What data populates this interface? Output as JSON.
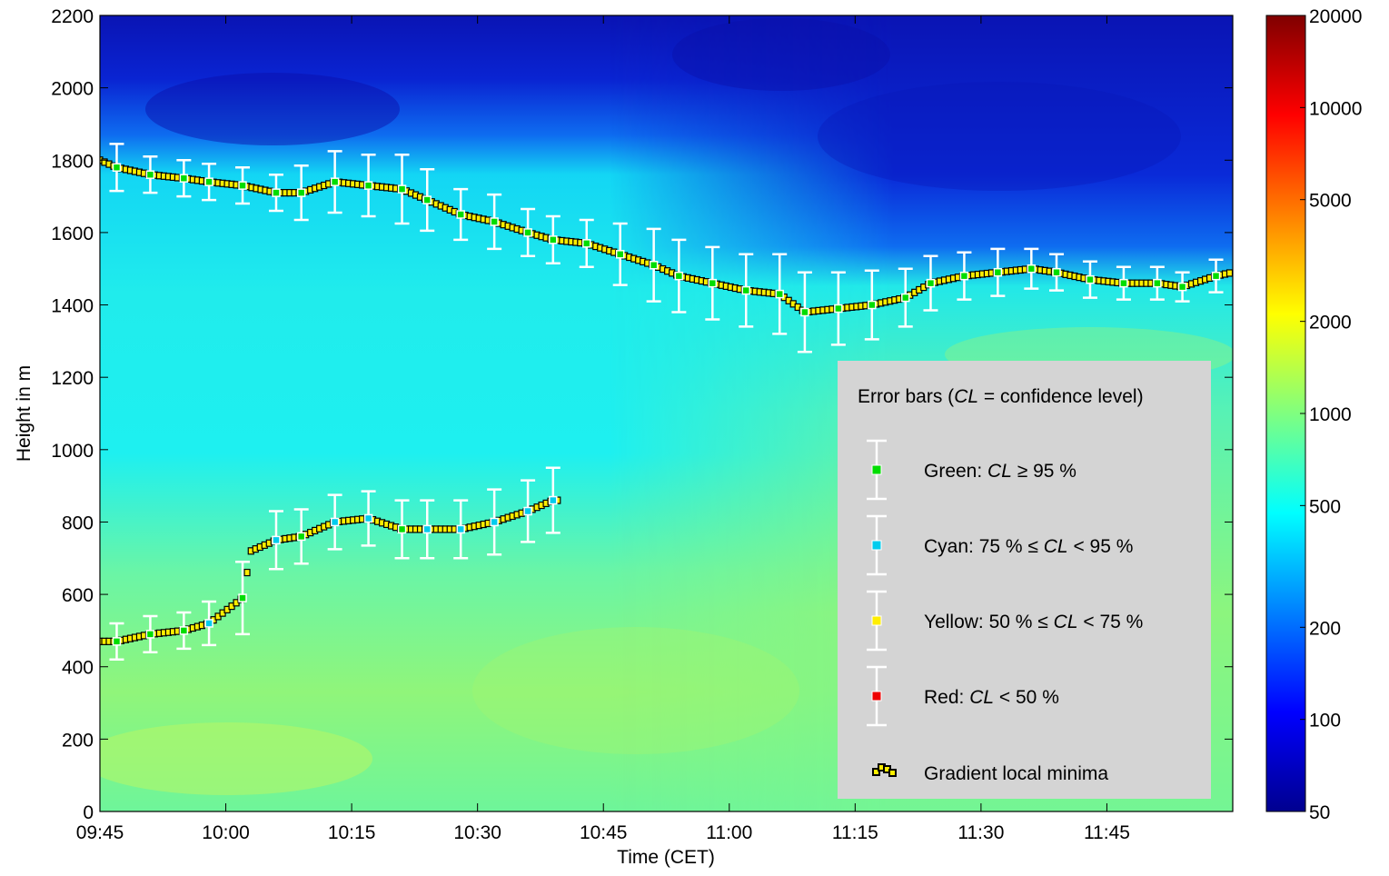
{
  "chart_data": {
    "type": "heatmap",
    "title": "",
    "xlabel": "Time (CET)",
    "ylabel": "Height in m",
    "x_ticks": [
      "09:45",
      "10:00",
      "10:15",
      "10:30",
      "10:45",
      "11:00",
      "11:15",
      "11:30",
      "11:45"
    ],
    "x_range": [
      "09:45",
      "12:00"
    ],
    "y_ticks": [
      "0",
      "200",
      "400",
      "600",
      "800",
      "1000",
      "1200",
      "1400",
      "1600",
      "1800",
      "2000",
      "2200"
    ],
    "ylim": [
      0,
      2200
    ],
    "colorbar": {
      "scale": "log",
      "range": [
        50,
        20000
      ],
      "ticks": [
        "20000",
        "10000",
        "5000",
        "2000",
        "1000",
        "500",
        "200",
        "100",
        "50"
      ],
      "colormap": "jet"
    },
    "legend": {
      "title_prefix": "Error bars (",
      "title_cl": "CL",
      "title_suffix": " = confidence level)",
      "entries": [
        {
          "color": "#00dd00",
          "pre": "Green: ",
          "cl": "CL",
          "post": " ≥ 95 %"
        },
        {
          "color": "#00ccee",
          "pre": "Cyan: 75 % ≤ ",
          "cl": "CL",
          "post": " < 95 %"
        },
        {
          "color": "#ffee00",
          "pre": "Yellow:  50 % ≤ ",
          "cl": "CL",
          "post": " < 75 %"
        },
        {
          "color": "#ee0000",
          "pre": "Red: ",
          "cl": "CL",
          "post": " < 50 %"
        }
      ],
      "minima_label": "Gradient local minima"
    },
    "upper_layer": {
      "points": [
        {
          "t": "09:45",
          "h": 1800,
          "err": null,
          "cl": null
        },
        {
          "t": "09:47",
          "h": 1780,
          "err": 65,
          "cl": "green"
        },
        {
          "t": "09:51",
          "h": 1760,
          "err": 50,
          "cl": "green"
        },
        {
          "t": "09:55",
          "h": 1750,
          "err": 50,
          "cl": "green"
        },
        {
          "t": "09:58",
          "h": 1740,
          "err": 50,
          "cl": "green"
        },
        {
          "t": "10:02",
          "h": 1730,
          "err": 50,
          "cl": "green"
        },
        {
          "t": "10:06",
          "h": 1710,
          "err": 50,
          "cl": "green"
        },
        {
          "t": "10:09",
          "h": 1710,
          "err": 75,
          "cl": "green"
        },
        {
          "t": "10:13",
          "h": 1740,
          "err": 85,
          "cl": "green"
        },
        {
          "t": "10:17",
          "h": 1730,
          "err": 85,
          "cl": "green"
        },
        {
          "t": "10:21",
          "h": 1720,
          "err": 95,
          "cl": "green"
        },
        {
          "t": "10:24",
          "h": 1690,
          "err": 85,
          "cl": "green"
        },
        {
          "t": "10:28",
          "h": 1650,
          "err": 70,
          "cl": "green"
        },
        {
          "t": "10:32",
          "h": 1630,
          "err": 75,
          "cl": "green"
        },
        {
          "t": "10:36",
          "h": 1600,
          "err": 65,
          "cl": "green"
        },
        {
          "t": "10:39",
          "h": 1580,
          "err": 65,
          "cl": "green"
        },
        {
          "t": "10:43",
          "h": 1570,
          "err": 65,
          "cl": "green"
        },
        {
          "t": "10:47",
          "h": 1540,
          "err": 85,
          "cl": "green"
        },
        {
          "t": "10:51",
          "h": 1510,
          "err": 100,
          "cl": "green"
        },
        {
          "t": "10:54",
          "h": 1480,
          "err": 100,
          "cl": "green"
        },
        {
          "t": "10:58",
          "h": 1460,
          "err": 100,
          "cl": "green"
        },
        {
          "t": "11:02",
          "h": 1440,
          "err": 100,
          "cl": "green"
        },
        {
          "t": "11:06",
          "h": 1430,
          "err": 110,
          "cl": "green"
        },
        {
          "t": "11:09",
          "h": 1380,
          "err": 110,
          "cl": "green"
        },
        {
          "t": "11:13",
          "h": 1390,
          "err": 100,
          "cl": "green"
        },
        {
          "t": "11:17",
          "h": 1400,
          "err": 95,
          "cl": "green"
        },
        {
          "t": "11:21",
          "h": 1420,
          "err": 80,
          "cl": "green"
        },
        {
          "t": "11:24",
          "h": 1460,
          "err": 75,
          "cl": "green"
        },
        {
          "t": "11:28",
          "h": 1480,
          "err": 65,
          "cl": "green"
        },
        {
          "t": "11:32",
          "h": 1490,
          "err": 65,
          "cl": "green"
        },
        {
          "t": "11:36",
          "h": 1500,
          "err": 55,
          "cl": "green"
        },
        {
          "t": "11:39",
          "h": 1490,
          "err": 50,
          "cl": "green"
        },
        {
          "t": "11:43",
          "h": 1470,
          "err": 50,
          "cl": "green"
        },
        {
          "t": "11:47",
          "h": 1460,
          "err": 45,
          "cl": "green"
        },
        {
          "t": "11:51",
          "h": 1460,
          "err": 45,
          "cl": "green"
        },
        {
          "t": "11:54",
          "h": 1450,
          "err": 40,
          "cl": "green"
        },
        {
          "t": "11:58",
          "h": 1480,
          "err": 45,
          "cl": "green"
        },
        {
          "t": "12:00",
          "h": 1490,
          "err": null,
          "cl": null
        }
      ]
    },
    "lower_layer": {
      "points": [
        {
          "t": "09:45",
          "h": 470,
          "err": null,
          "cl": null
        },
        {
          "t": "09:47",
          "h": 470,
          "err": 50,
          "cl": "green"
        },
        {
          "t": "09:51",
          "h": 490,
          "err": 50,
          "cl": "green"
        },
        {
          "t": "09:55",
          "h": 500,
          "err": 50,
          "cl": "green"
        },
        {
          "t": "09:58",
          "h": 520,
          "err": 60,
          "cl": "cyan"
        },
        {
          "t": "10:02",
          "h": 590,
          "err": 100,
          "cl": "green"
        },
        {
          "t": "10:03",
          "h": 720,
          "err": null,
          "cl": null
        },
        {
          "t": "10:06",
          "h": 750,
          "err": 80,
          "cl": "cyan"
        },
        {
          "t": "10:09",
          "h": 760,
          "err": 75,
          "cl": "green"
        },
        {
          "t": "10:13",
          "h": 800,
          "err": 75,
          "cl": "cyan"
        },
        {
          "t": "10:17",
          "h": 810,
          "err": 75,
          "cl": "cyan"
        },
        {
          "t": "10:21",
          "h": 780,
          "err": 80,
          "cl": "green"
        },
        {
          "t": "10:24",
          "h": 780,
          "err": 80,
          "cl": "cyan"
        },
        {
          "t": "10:28",
          "h": 780,
          "err": 80,
          "cl": "cyan"
        },
        {
          "t": "10:32",
          "h": 800,
          "err": 90,
          "cl": "cyan"
        },
        {
          "t": "10:36",
          "h": 830,
          "err": 85,
          "cl": "cyan"
        },
        {
          "t": "10:39",
          "h": 860,
          "err": 90,
          "cl": "cyan"
        },
        {
          "t": "10:40",
          "h": 860,
          "err": null,
          "cl": null
        }
      ]
    }
  }
}
